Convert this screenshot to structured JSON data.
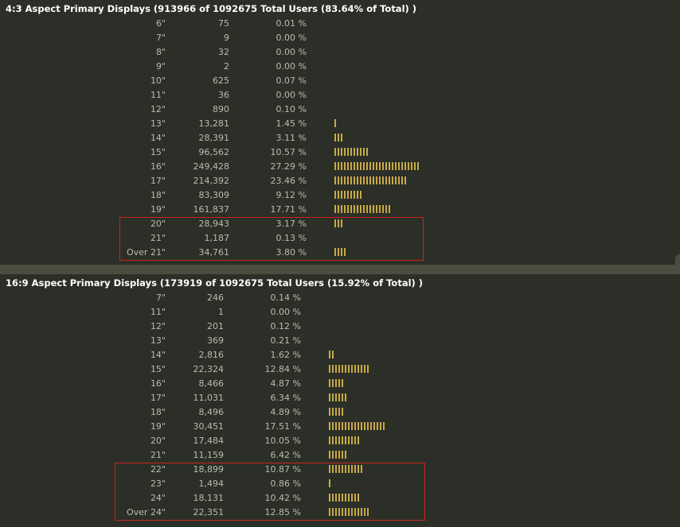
{
  "chart_data": [
    {
      "type": "bar",
      "title": "4:3 Aspect Primary Displays (913966 of 1092675 Total Users (83.64% of Total) )",
      "categories": [
        "6\"",
        "7\"",
        "8\"",
        "9\"",
        "10\"",
        "11\"",
        "12\"",
        "13\"",
        "14\"",
        "15\"",
        "16\"",
        "17\"",
        "18\"",
        "19\"",
        "20\"",
        "21\"",
        "Over 21\""
      ],
      "counts": [
        "75",
        "9",
        "32",
        "2",
        "625",
        "36",
        "890",
        "13,281",
        "28,391",
        "96,562",
        "249,428",
        "214,392",
        "83,309",
        "161,837",
        "28,943",
        "1,187",
        "34,761"
      ],
      "percents": [
        "0.01 %",
        "0.00 %",
        "0.00 %",
        "0.00 %",
        "0.07 %",
        "0.00 %",
        "0.10 %",
        "1.45 %",
        "3.11 %",
        "10.57 %",
        "27.29 %",
        "23.46 %",
        "9.12 %",
        "17.71 %",
        "3.17 %",
        "0.13 %",
        "3.80 %"
      ],
      "values": [
        0.01,
        0.0,
        0.0,
        0.0,
        0.07,
        0.0,
        0.1,
        1.45,
        3.11,
        10.57,
        27.29,
        23.46,
        9.12,
        17.71,
        3.17,
        0.13,
        3.8
      ],
      "highlighted_categories": [
        "20\"",
        "21\"",
        "Over 21\""
      ],
      "colors": {
        "bar": "#c8aa48",
        "highlight": "#c8241f",
        "title": "#ffffff",
        "text": "#b9bcae",
        "background": "#2c2f27"
      }
    },
    {
      "type": "bar",
      "title": "16:9 Aspect Primary Displays (173919 of 1092675 Total Users (15.92% of Total) )",
      "categories": [
        "7\"",
        "11\"",
        "12\"",
        "13\"",
        "14\"",
        "15\"",
        "16\"",
        "17\"",
        "18\"",
        "19\"",
        "20\"",
        "21\"",
        "22\"",
        "23\"",
        "24\"",
        "Over 24\""
      ],
      "counts": [
        "246",
        "1",
        "201",
        "369",
        "2,816",
        "22,324",
        "8,466",
        "11,031",
        "8,496",
        "30,451",
        "17,484",
        "11,159",
        "18,899",
        "1,494",
        "18,131",
        "22,351"
      ],
      "percents": [
        "0.14 %",
        "0.00 %",
        "0.12 %",
        "0.21 %",
        "1.62 %",
        "12.84 %",
        "4.87 %",
        "6.34 %",
        "4.89 %",
        "17.51 %",
        "10.05 %",
        "6.42 %",
        "10.87 %",
        "0.86 %",
        "10.42 %",
        "12.85 %"
      ],
      "values": [
        0.14,
        0.0,
        0.12,
        0.21,
        1.62,
        12.84,
        4.87,
        6.34,
        4.89,
        17.51,
        10.05,
        6.42,
        10.87,
        0.86,
        10.42,
        12.85
      ],
      "highlighted_categories": [
        "22\"",
        "23\"",
        "24\"",
        "Over 24\""
      ],
      "colors": {
        "bar": "#c8aa48",
        "highlight": "#c8241f",
        "title": "#ffffff",
        "text": "#b9bcae",
        "background": "#2c2f27"
      }
    }
  ]
}
